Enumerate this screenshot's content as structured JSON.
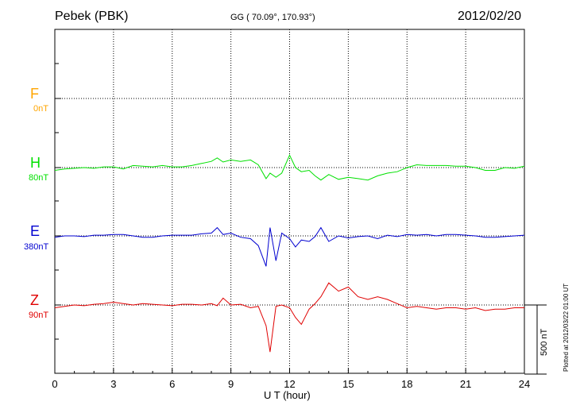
{
  "header": {
    "station": "Pebek (PBK)",
    "coords": "GG ( 70.09°, 170.93°)",
    "date": "2012/02/20"
  },
  "footer": {
    "plotted": "Plotted at 2012/03/22 01:00 UT"
  },
  "colors": {
    "F": "#ffa500",
    "H": "#00e000",
    "E": "#0000d0",
    "Z": "#e00000"
  },
  "chart_data": {
    "type": "line",
    "title": "Pebek (PBK)",
    "xlabel": "U T (hour)",
    "ylabel": "",
    "xlim": [
      0,
      24
    ],
    "x_ticks": [
      "0",
      "3",
      "6",
      "9",
      "12",
      "15",
      "18",
      "21",
      "24"
    ],
    "scale_bar": {
      "label": "500 nT",
      "value": 500
    },
    "grid": true,
    "series": [
      {
        "name": "F",
        "offset_label": "0nT",
        "x": [],
        "values": []
      },
      {
        "name": "H",
        "offset_label": "80nT",
        "x": [
          0,
          0.5,
          1,
          1.5,
          2,
          2.5,
          3,
          3.5,
          4,
          4.5,
          5,
          5.5,
          6,
          6.5,
          7,
          7.5,
          8,
          8.3,
          8.6,
          9,
          9.5,
          10,
          10.4,
          10.8,
          11,
          11.3,
          11.6,
          12,
          12.3,
          12.6,
          13,
          13.3,
          13.6,
          14,
          14.5,
          15,
          15.5,
          16,
          16.5,
          17,
          17.5,
          18,
          18.5,
          19,
          19.5,
          20,
          20.5,
          21,
          21.5,
          22,
          22.5,
          23,
          23.5,
          24
        ],
        "values": [
          -20,
          -10,
          -5,
          0,
          -5,
          5,
          5,
          -10,
          15,
          10,
          5,
          15,
          5,
          5,
          15,
          30,
          45,
          70,
          40,
          55,
          45,
          55,
          20,
          -80,
          -40,
          -70,
          -40,
          90,
          0,
          -30,
          -20,
          -60,
          -90,
          -50,
          -85,
          -70,
          -80,
          -90,
          -60,
          -40,
          -30,
          0,
          20,
          15,
          15,
          15,
          10,
          10,
          0,
          -20,
          -20,
          0,
          -5,
          10
        ]
      },
      {
        "name": "E",
        "offset_label": "380nT",
        "x": [
          0,
          0.5,
          1,
          1.5,
          2,
          2.5,
          3,
          3.5,
          4,
          4.5,
          5,
          5.5,
          6,
          6.5,
          7,
          7.5,
          8,
          8.3,
          8.6,
          9,
          9.5,
          10,
          10.4,
          10.8,
          11,
          11.3,
          11.6,
          12,
          12.3,
          12.6,
          13,
          13.3,
          13.6,
          14,
          14.5,
          15,
          15.5,
          16,
          16.5,
          17,
          17.5,
          18,
          18.5,
          19,
          19.5,
          20,
          20.5,
          21,
          21.5,
          22,
          22.5,
          23,
          23.5,
          24
        ],
        "values": [
          -10,
          0,
          0,
          -5,
          5,
          5,
          10,
          10,
          0,
          -10,
          -10,
          0,
          5,
          5,
          5,
          15,
          20,
          60,
          10,
          20,
          -10,
          -20,
          -70,
          -220,
          60,
          -180,
          20,
          -20,
          -80,
          -30,
          -40,
          -5,
          60,
          -40,
          0,
          -15,
          -5,
          0,
          -20,
          5,
          -5,
          10,
          5,
          10,
          0,
          10,
          10,
          5,
          0,
          -10,
          -10,
          -5,
          0,
          5
        ]
      },
      {
        "name": "Z",
        "offset_label": "90nT",
        "x": [
          0,
          0.5,
          1,
          1.5,
          2,
          2.5,
          3,
          3.5,
          4,
          4.5,
          5,
          5.5,
          6,
          6.5,
          7,
          7.5,
          8,
          8.3,
          8.6,
          9,
          9.5,
          10,
          10.4,
          10.8,
          11,
          11.3,
          11.6,
          12,
          12.3,
          12.6,
          13,
          13.3,
          13.6,
          14,
          14.5,
          15,
          15.5,
          16,
          16.5,
          17,
          17.5,
          18,
          18.5,
          19,
          19.5,
          20,
          20.5,
          21,
          21.5,
          22,
          22.5,
          23,
          23.5,
          24
        ],
        "values": [
          -20,
          -10,
          0,
          -5,
          5,
          10,
          20,
          10,
          0,
          10,
          5,
          0,
          -5,
          5,
          5,
          0,
          10,
          -5,
          50,
          0,
          5,
          -20,
          -10,
          -150,
          -340,
          -10,
          0,
          -20,
          -90,
          -140,
          -30,
          10,
          60,
          160,
          100,
          130,
          60,
          40,
          60,
          40,
          10,
          -20,
          -10,
          -20,
          -30,
          -20,
          -20,
          -30,
          -20,
          -40,
          -30,
          -30,
          -20,
          -20
        ]
      }
    ]
  }
}
